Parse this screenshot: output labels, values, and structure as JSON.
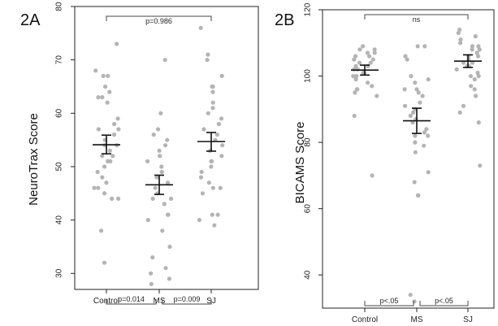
{
  "chart_data": [
    {
      "type": "scatter",
      "panel_label": "2A",
      "ylabel": "NeuroTrax Score",
      "categories": [
        "Control",
        "MS",
        "SJ"
      ],
      "ylim": [
        27,
        80
      ],
      "yticks": [
        30,
        40,
        50,
        60,
        70,
        80
      ],
      "series": [
        {
          "category": "Control",
          "points": [
            73,
            68,
            67,
            67,
            65,
            64,
            63,
            63,
            62,
            59,
            58,
            57,
            57,
            56,
            55,
            54,
            54,
            53,
            52,
            52,
            51,
            51,
            50,
            49,
            48,
            47,
            46,
            46,
            45,
            44,
            44,
            38,
            32
          ],
          "mean": 54.1,
          "sem_low": 52.4,
          "sem_high": 55.9
        },
        {
          "category": "MS",
          "points": [
            70,
            60,
            57,
            56,
            55,
            54,
            53,
            52,
            52,
            51,
            50,
            49,
            48,
            47,
            46,
            45,
            44,
            44,
            43,
            41,
            41,
            40,
            38,
            35,
            33,
            31,
            30,
            29,
            28
          ],
          "mean": 46.6,
          "sem_low": 44.8,
          "sem_high": 48.4
        },
        {
          "category": "SJ",
          "points": [
            76,
            71,
            70,
            67,
            65,
            65,
            64,
            62,
            61,
            60,
            59,
            58,
            57,
            56,
            55,
            54,
            53,
            52,
            51,
            51,
            50,
            49,
            48,
            47,
            46,
            46,
            45,
            41,
            41,
            40,
            39
          ],
          "mean": 54.7,
          "sem_low": 52.9,
          "sem_high": 56.4
        }
      ],
      "annotations": [
        {
          "from": "Control",
          "to": "SJ",
          "text": "p=0.986",
          "position": "top"
        },
        {
          "from": "Control",
          "to": "MS",
          "text": "p=0.014",
          "position": "bottom"
        },
        {
          "from": "MS",
          "to": "SJ",
          "text": "p=0.009",
          "position": "bottom"
        }
      ]
    },
    {
      "type": "scatter",
      "panel_label": "2B",
      "ylabel": "BICAMS Score",
      "categories": [
        "Control",
        "MS",
        "SJ"
      ],
      "ylim": [
        30,
        120
      ],
      "yticks": [
        40,
        60,
        80,
        100,
        120
      ],
      "series": [
        {
          "category": "Control",
          "points": [
            109,
            108,
            108,
            107,
            107,
            106,
            106,
            105,
            105,
            104,
            104,
            103,
            103,
            102,
            102,
            101,
            101,
            100,
            100,
            99,
            98,
            97,
            96,
            96,
            95,
            94,
            88,
            70
          ],
          "mean": 101.8,
          "sem_low": 100.3,
          "sem_high": 103.3
        },
        {
          "category": "MS",
          "points": [
            109,
            109,
            106,
            105,
            100,
            99,
            98,
            96,
            96,
            95,
            94,
            92,
            91,
            90,
            89,
            88,
            87,
            86,
            84,
            83,
            82,
            82,
            80,
            79,
            77,
            71,
            68,
            64,
            64,
            34,
            32
          ],
          "mean": 86.5,
          "sem_low": 82.7,
          "sem_high": 90.3
        },
        {
          "category": "SJ",
          "points": [
            114,
            113,
            112,
            111,
            110,
            109,
            109,
            108,
            108,
            107,
            106,
            106,
            105,
            104,
            104,
            103,
            103,
            102,
            101,
            100,
            100,
            99,
            97,
            96,
            94,
            91,
            89,
            86,
            73
          ],
          "mean": 104.5,
          "sem_low": 102.6,
          "sem_high": 106.4
        }
      ],
      "annotations": [
        {
          "from": "Control",
          "to": "SJ",
          "text": "ns",
          "position": "top"
        },
        {
          "from": "Control",
          "to": "MS",
          "text": "p<.05",
          "position": "bottom"
        },
        {
          "from": "MS",
          "to": "SJ",
          "text": "p<.05",
          "position": "bottom"
        }
      ]
    }
  ]
}
